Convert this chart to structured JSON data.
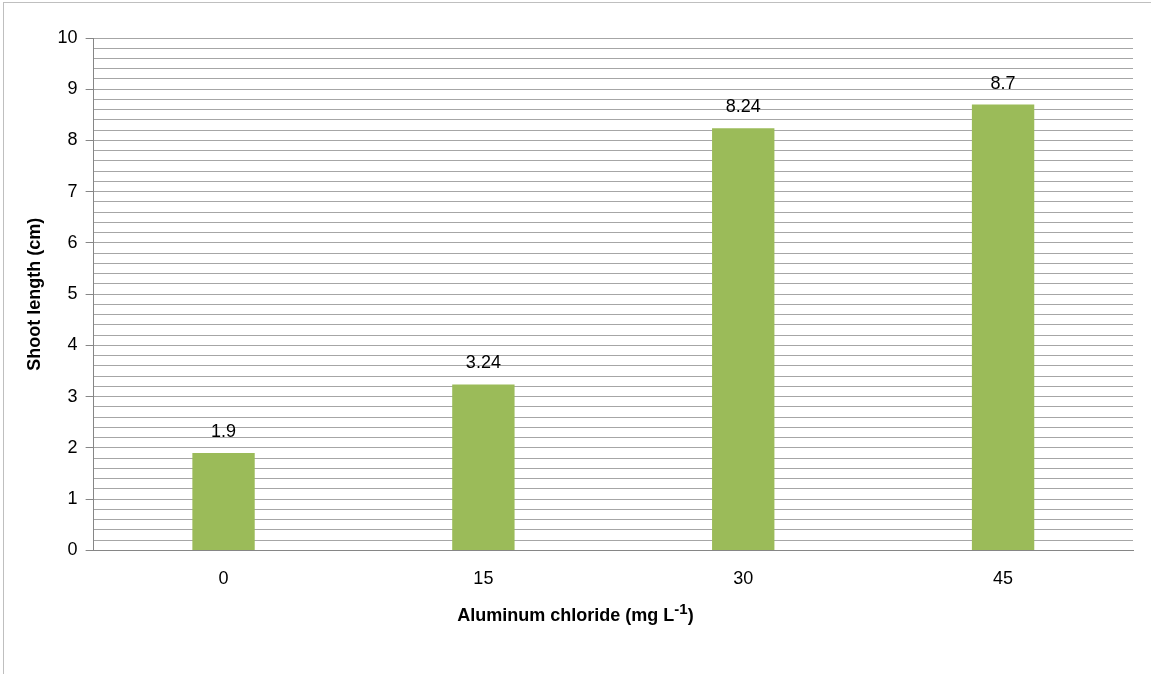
{
  "chart_data": {
    "type": "bar",
    "xlabel": "Aluminum chloride (mg L$^{-1}$)",
    "ylabel": "Shoot length (cm)",
    "categories": [
      "0",
      "15",
      "30",
      "45"
    ],
    "values": [
      1.9,
      3.24,
      8.24,
      8.7
    ],
    "color": "#9bbb59",
    "data_labels": true,
    "ylim": [
      0,
      10
    ],
    "yticks": [
      0,
      {
        "value": 0.2,
        "label": null
      },
      {
        "value": 0.4,
        "label": null
      },
      {
        "value": 0.6,
        "label": null
      },
      {
        "value": 0.8,
        "label": null
      },
      1,
      {
        "value": 1.2,
        "label": null
      },
      {
        "value": 1.4,
        "label": null
      },
      {
        "value": 1.6,
        "label": null
      },
      {
        "value": 1.8,
        "label": null
      },
      2,
      {
        "value": 2.2,
        "label": null
      },
      {
        "value": 2.4,
        "label": null
      },
      {
        "value": 2.6,
        "label": null
      },
      {
        "value": 2.8,
        "label": null
      },
      3,
      {
        "value": 3.2,
        "label": null
      },
      {
        "value": 3.4,
        "label": null
      },
      {
        "value": 3.6,
        "label": null
      },
      {
        "value": 3.8,
        "label": null
      },
      4,
      {
        "value": 4.2,
        "label": null
      },
      {
        "value": 4.4,
        "label": null
      },
      {
        "value": 4.6,
        "label": null
      },
      {
        "value": 4.8,
        "label": null
      },
      5,
      {
        "value": 5.2,
        "label": null
      },
      {
        "value": 5.4,
        "label": null
      },
      {
        "value": 5.6,
        "label": null
      },
      {
        "value": 5.8,
        "label": null
      },
      6,
      {
        "value": 6.2,
        "label": null
      },
      {
        "value": 6.4,
        "label": null
      },
      {
        "value": 6.6,
        "label": null
      },
      {
        "value": 6.8,
        "label": null
      },
      7,
      {
        "value": 7.2,
        "label": null
      },
      {
        "value": 7.4,
        "label": null
      },
      {
        "value": 7.6,
        "label": null
      },
      {
        "value": 7.8,
        "label": null
      },
      8,
      {
        "value": 8.2,
        "label": null
      },
      {
        "value": 8.4,
        "label": null
      },
      {
        "value": 8.6,
        "label": null
      },
      {
        "value": 8.8,
        "label": null
      },
      9,
      {
        "value": 9.2,
        "label": null
      },
      {
        "value": 9.4,
        "label": null
      },
      {
        "value": 9.6,
        "label": null
      },
      {
        "value": 9.8,
        "label": null
      },
      10
    ],
    "grid": "y",
    "legend": false
  }
}
